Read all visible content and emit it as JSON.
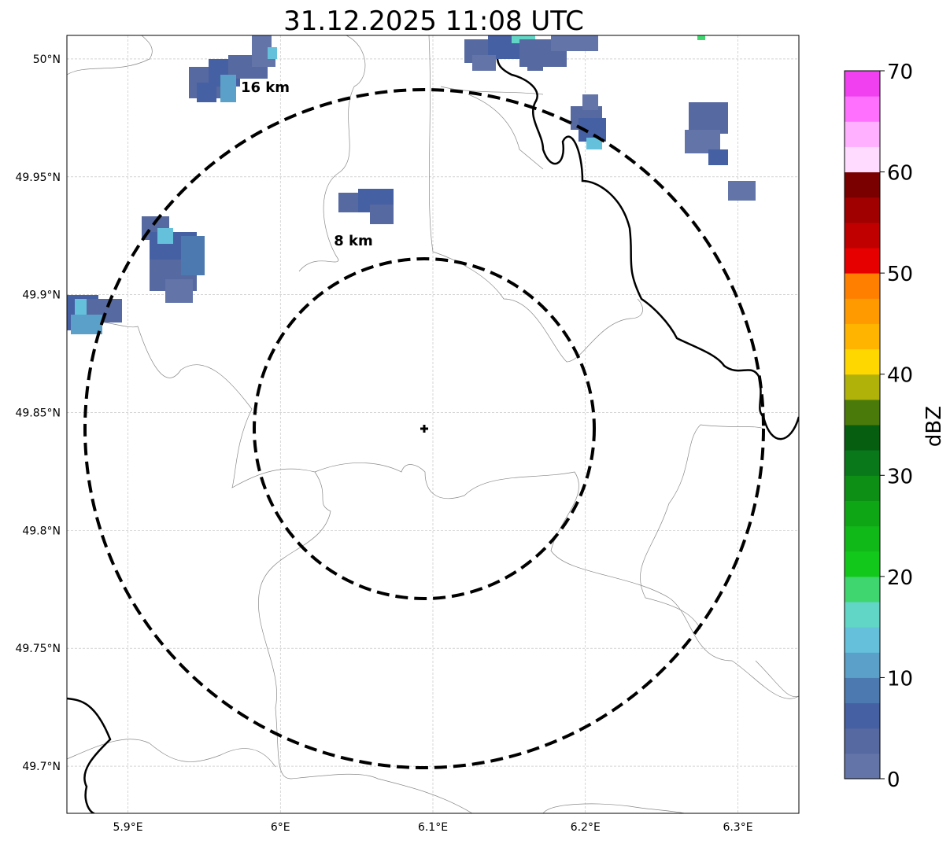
{
  "title": "31.12.2025 11:08 UTC",
  "map": {
    "lon_ticks": [
      {
        "v": 5.9,
        "label": "5.9°E"
      },
      {
        "v": 6.0,
        "label": "6°E"
      },
      {
        "v": 6.1,
        "label": "6.1°E"
      },
      {
        "v": 6.2,
        "label": "6.2°E"
      },
      {
        "v": 6.3,
        "label": "6.3°E"
      }
    ],
    "lat_ticks": [
      {
        "v": 50.0,
        "label": "50°N"
      },
      {
        "v": 49.95,
        "label": "49.95°N"
      },
      {
        "v": 49.9,
        "label": "49.9°N"
      },
      {
        "v": 49.85,
        "label": "49.85°N"
      },
      {
        "v": 49.8,
        "label": "49.8°N"
      },
      {
        "v": 49.75,
        "label": "49.75°N"
      },
      {
        "v": 49.7,
        "label": "49.7°N"
      }
    ],
    "lon_range": [
      5.86,
      6.34
    ],
    "lat_range": [
      49.68,
      50.01
    ],
    "center": {
      "lon": 6.095,
      "lat": 49.844
    },
    "rings": [
      {
        "label": "8 km"
      },
      {
        "label": "16 km"
      }
    ]
  },
  "colorbar": {
    "label": "dBZ",
    "ticks": [
      "0",
      "10",
      "20",
      "30",
      "40",
      "50",
      "60",
      "70"
    ],
    "range": [
      0,
      70
    ],
    "colors": [
      "#6374a8",
      "#5669a0",
      "#4660a4",
      "#4c7ab0",
      "#5aa0c8",
      "#65c0dc",
      "#62d6c6",
      "#3fd66f",
      "#12c81a",
      "#10b818",
      "#0fa616",
      "#0c8f14",
      "#08781a",
      "#065f10",
      "#4a7a0a",
      "#b0b20a",
      "#ffd700",
      "#ffb400",
      "#ff9a00",
      "#ff7f00",
      "#e60000",
      "#c00000",
      "#a00000",
      "#7a0000",
      "#ffdcff",
      "#ffb0ff",
      "#ff70ff",
      "#f040f0"
    ]
  }
}
